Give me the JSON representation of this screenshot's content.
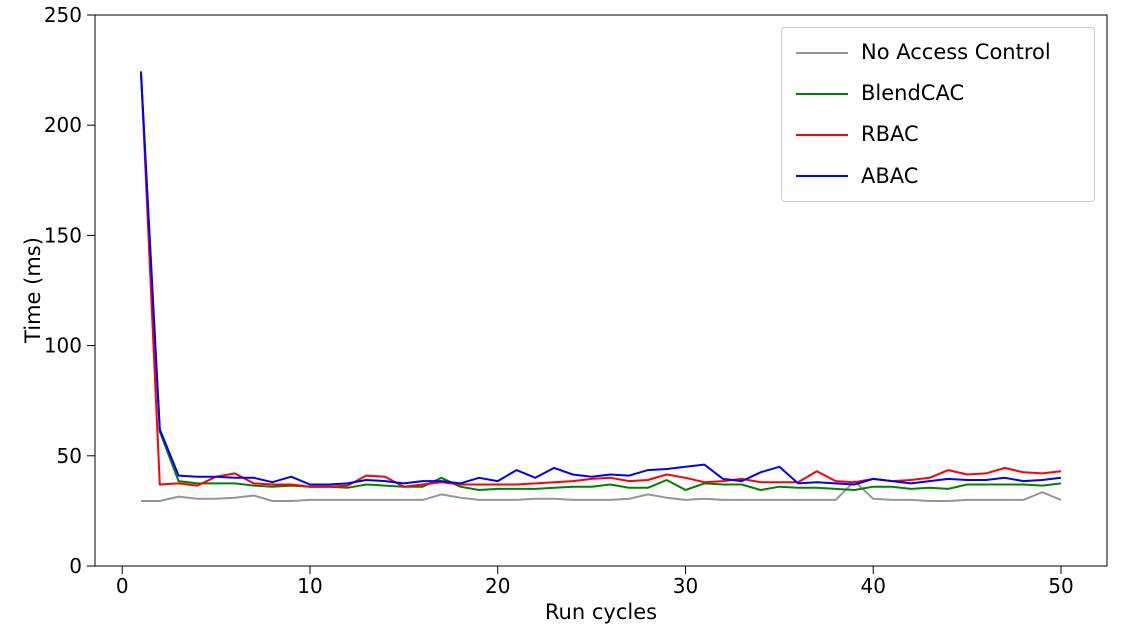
{
  "figure": {
    "background": "#ffffff",
    "text_color": "#000000",
    "spine_color": "#000000"
  },
  "chart_data": {
    "type": "line",
    "title": "",
    "xlabel": "Run cycles",
    "ylabel": "Time (ms)",
    "xlim": [
      -1.45,
      52.45
    ],
    "ylim": [
      0,
      250
    ],
    "xticks": [
      0,
      10,
      20,
      30,
      40,
      50
    ],
    "yticks": [
      0,
      50,
      100,
      150,
      200,
      250
    ],
    "grid": false,
    "legend_position": "upper right",
    "x": [
      1,
      2,
      3,
      4,
      5,
      6,
      7,
      8,
      9,
      10,
      11,
      12,
      13,
      14,
      15,
      16,
      17,
      18,
      19,
      20,
      21,
      22,
      23,
      24,
      25,
      26,
      27,
      28,
      29,
      30,
      31,
      32,
      33,
      34,
      35,
      36,
      37,
      38,
      39,
      40,
      41,
      42,
      43,
      44,
      45,
      46,
      47,
      48,
      49,
      50
    ],
    "series": [
      {
        "name": "No Access Control",
        "color": "#969696",
        "values": [
          29.5,
          29.5,
          31.5,
          30.5,
          30.5,
          31,
          32,
          29.5,
          29.5,
          30,
          30,
          30,
          30,
          30,
          30,
          30,
          32.5,
          31,
          30,
          30,
          30,
          30.5,
          30.5,
          30,
          30,
          30,
          30.5,
          32.5,
          31,
          30,
          30.5,
          30,
          30,
          30,
          30,
          30,
          30,
          30,
          38.5,
          30.5,
          30,
          30,
          29.5,
          29.5,
          30,
          30,
          30,
          30,
          33.5,
          30
        ]
      },
      {
        "name": "BlendCAC",
        "color": "#008000",
        "values": [
          223,
          61,
          38.5,
          37.5,
          37.5,
          37.5,
          36.5,
          36,
          36.5,
          36,
          36,
          35.5,
          37,
          36.5,
          36,
          36,
          40,
          36,
          34.5,
          35,
          35,
          35,
          35.5,
          36,
          36,
          37,
          35.5,
          35.5,
          39,
          34.5,
          37.5,
          37,
          37,
          34.5,
          36,
          35.5,
          35.5,
          35,
          34.5,
          36,
          36,
          35,
          35.5,
          35,
          37,
          37,
          37,
          37,
          36.5,
          37.5
        ]
      },
      {
        "name": "RBAC",
        "color": "#ff0000",
        "values": [
          224.5,
          37,
          37.5,
          36.5,
          40.5,
          42,
          37.5,
          37,
          37,
          36,
          36,
          36.5,
          41,
          40.5,
          36,
          37,
          38,
          37,
          37,
          37,
          37,
          37.5,
          38,
          38.5,
          39.5,
          40,
          38.5,
          39,
          41.5,
          40,
          38,
          38.5,
          39.5,
          38,
          38,
          38,
          43,
          38.5,
          38,
          39.5,
          38.5,
          39,
          40,
          43.5,
          41.5,
          42,
          44.5,
          42.5,
          42,
          43
        ]
      },
      {
        "name": "ABAC",
        "color": "#0000ff",
        "values": [
          224,
          62,
          41,
          40.5,
          40.5,
          40,
          40,
          38,
          40.5,
          37,
          37,
          37.5,
          39,
          38.5,
          37.5,
          38.5,
          38.5,
          37.5,
          40,
          38.5,
          43.5,
          40,
          44.5,
          41.5,
          40.5,
          41.5,
          41,
          43.5,
          44,
          45,
          46,
          39.5,
          38.5,
          42.5,
          45,
          37.5,
          38,
          37.5,
          37,
          39.5,
          38.5,
          37.5,
          38.5,
          39.5,
          39,
          39,
          40,
          38.5,
          39,
          40
        ]
      }
    ]
  }
}
